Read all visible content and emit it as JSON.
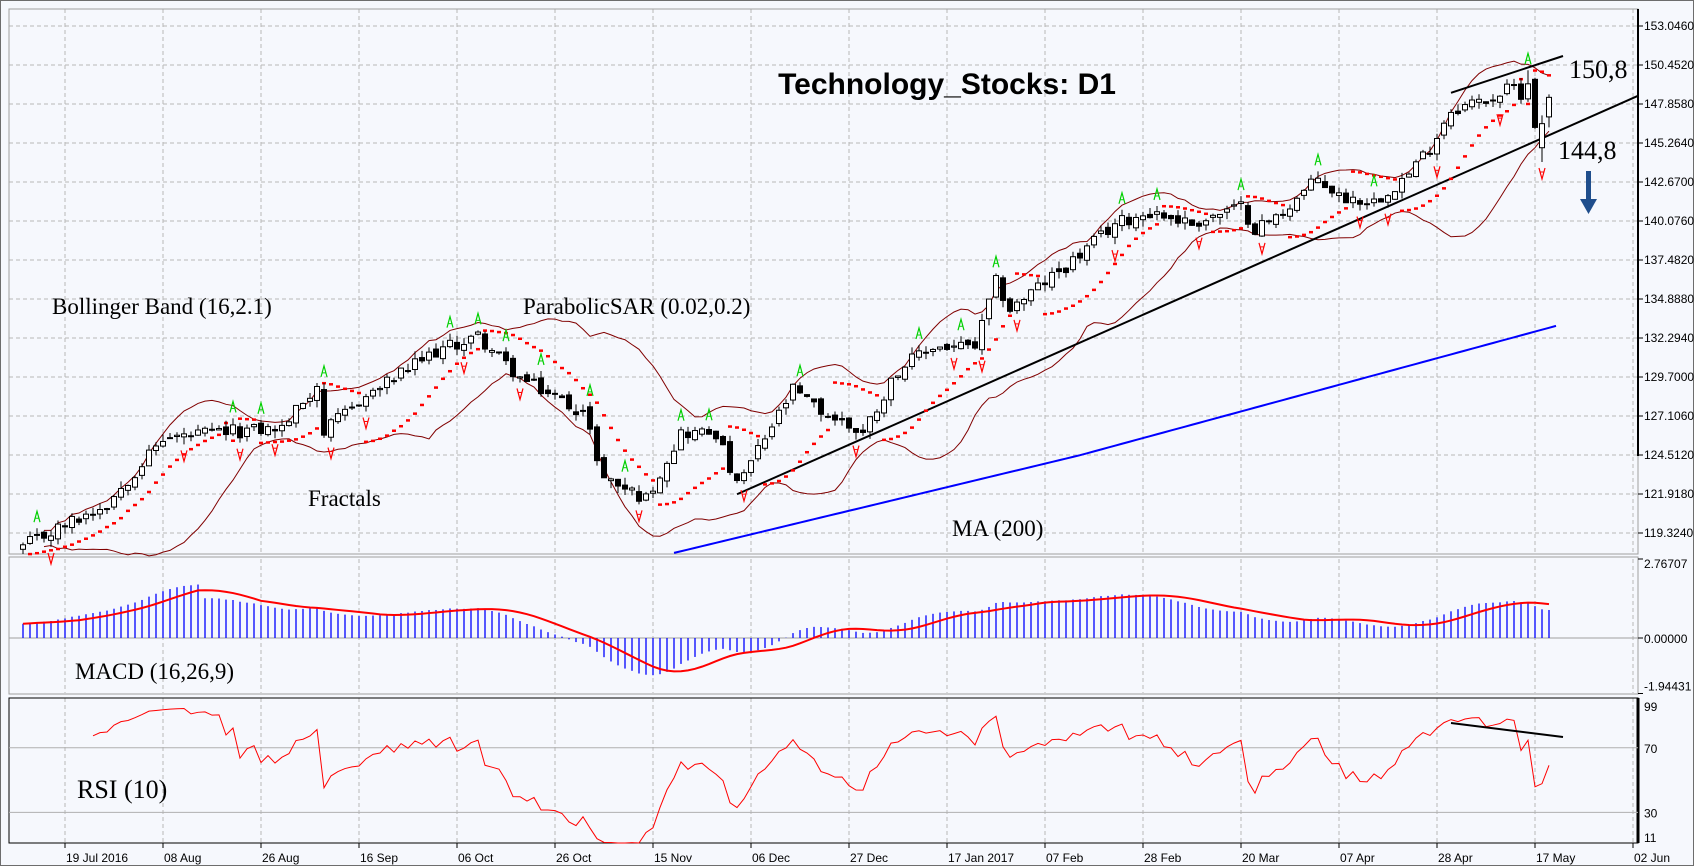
{
  "chart_data": {
    "type": "candlestick",
    "title": "Technology_Stocks: D1",
    "timeframe": "D1",
    "price_axis_ticks": [
      "153.0460",
      "150.4520",
      "147.8580",
      "145.2640",
      "142.6700",
      "140.0760",
      "137.4820",
      "134.8880",
      "132.2940",
      "129.7000",
      "127.1060",
      "124.5120",
      "121.9180",
      "119.3240"
    ],
    "price_axis_values": [
      153.046,
      150.452,
      147.858,
      145.264,
      142.67,
      140.076,
      137.482,
      134.888,
      132.294,
      129.7,
      127.106,
      124.512,
      121.918,
      119.324
    ],
    "date_ticks": [
      {
        "label": "19 Jul 2016",
        "bar": 6
      },
      {
        "label": "08 Aug",
        "bar": 20
      },
      {
        "label": "26 Aug",
        "bar": 34
      },
      {
        "label": "16 Sep",
        "bar": 48
      },
      {
        "label": "06 Oct",
        "bar": 62
      },
      {
        "label": "26 Oct",
        "bar": 76
      },
      {
        "label": "15 Nov",
        "bar": 90
      },
      {
        "label": "06 Dec",
        "bar": 104
      },
      {
        "label": "27 Dec",
        "bar": 118
      },
      {
        "label": "17 Jan 2017",
        "bar": 132
      },
      {
        "label": "07 Feb",
        "bar": 146
      },
      {
        "label": "28 Feb",
        "bar": 160
      },
      {
        "label": "20 Mar",
        "bar": 174
      },
      {
        "label": "07 Apr",
        "bar": 188
      },
      {
        "label": "28 Apr",
        "bar": 202
      },
      {
        "label": "17 May",
        "bar": 216
      },
      {
        "label": "02 Jun",
        "bar": 230
      }
    ],
    "bar_count": 219,
    "close_waypoints": [
      [
        0,
        118.4
      ],
      [
        12,
        121.3
      ],
      [
        20,
        125.6
      ],
      [
        28,
        126.0
      ],
      [
        37,
        126.3
      ],
      [
        42,
        129.2
      ],
      [
        43,
        126.0
      ],
      [
        48,
        128.1
      ],
      [
        59,
        131.4
      ],
      [
        65,
        132.4
      ],
      [
        71,
        129.6
      ],
      [
        80,
        127.4
      ],
      [
        83,
        123.0
      ],
      [
        89,
        121.6
      ],
      [
        94,
        126.0
      ],
      [
        99,
        126.0
      ],
      [
        102,
        122.4
      ],
      [
        110,
        128.8
      ],
      [
        114,
        127.4
      ],
      [
        120,
        126.0
      ],
      [
        125,
        130.2
      ],
      [
        130,
        131.7
      ],
      [
        136,
        131.7
      ],
      [
        139,
        136.0
      ],
      [
        141,
        134.2
      ],
      [
        144,
        135.3
      ],
      [
        151,
        137.8
      ],
      [
        156,
        139.9
      ],
      [
        161,
        140.7
      ],
      [
        167,
        139.9
      ],
      [
        174,
        141.0
      ],
      [
        176,
        139.6
      ],
      [
        179,
        140.3
      ],
      [
        185,
        142.9
      ],
      [
        188,
        141.7
      ],
      [
        193,
        141.4
      ],
      [
        198,
        143.2
      ],
      [
        201,
        145.0
      ],
      [
        204,
        147.5
      ],
      [
        210,
        148.3
      ],
      [
        213,
        149.0
      ],
      [
        214,
        148.6
      ]
    ],
    "last_bars_ohlc": [
      {
        "bar": 215,
        "date": "16 May",
        "o": 148.2,
        "h": 150.1,
        "l": 148.0,
        "c": 149.2
      },
      {
        "bar": 216,
        "date": "17 May",
        "o": 149.5,
        "h": 149.6,
        "l": 146.2,
        "c": 146.3
      },
      {
        "bar": 217,
        "date": "18 May",
        "o": 144.95,
        "h": 147.1,
        "l": 144.0,
        "c": 146.55
      },
      {
        "bar": 218,
        "date": "19 May",
        "o": 147.0,
        "h": 148.5,
        "l": 146.3,
        "c": 148.3
      }
    ],
    "ma200_waypoints": [
      [
        93,
        118.0
      ],
      [
        151,
        124.5
      ],
      [
        219,
        133.1
      ]
    ],
    "trendlines": [
      {
        "name": "support",
        "from": [
          102,
          121.9
        ],
        "to": [
          231,
          148.4
        ]
      },
      {
        "name": "resistance",
        "from": [
          204,
          148.6
        ],
        "to": [
          220,
          151.05
        ]
      }
    ],
    "rsi_trendline": {
      "from": [
        204,
        85.4
      ],
      "to": [
        220,
        76.7
      ]
    },
    "macd_axis_ticks": [
      "2.76707",
      "0.00000",
      "-1.94431"
    ],
    "macd_range": [
      -1.94431,
      2.76707
    ],
    "rsi_axis_ticks": [
      "99",
      "70",
      "30",
      "11"
    ],
    "rsi_range": [
      11,
      99
    ],
    "rsi_levels": [
      70,
      30
    ],
    "annotations": {
      "bollinger": "Bollinger Band (16,2.1)",
      "sar": "ParabolicSAR (0.02,0.2)",
      "fractals": "Fractals",
      "ma": "MA (200)",
      "macd": "MACD (16,26,9)",
      "rsi": "RSI (10)",
      "level_high": "150,8",
      "level_low": "144,8"
    },
    "indicator_params": {
      "bollinger_period": 16,
      "bollinger_dev": 2.1,
      "sar_step": 0.02,
      "sar_max": 0.2,
      "macd_fast": 16,
      "macd_slow": 26,
      "macd_signal": 9,
      "rsi_period": 10,
      "ma_period": 200
    },
    "colors": {
      "candle_up": "#ffffff",
      "candle_down": "#000000",
      "bollinger": "#800000",
      "sar": "#ff0000",
      "fractal_up": "#00d000",
      "fractal_down": "#ff0000",
      "ma": "#0000ff",
      "macd_hist": "#0000ff",
      "macd_signal": "#ff0000",
      "rsi": "#ff0000",
      "arrow": "#1f4e8c"
    }
  }
}
